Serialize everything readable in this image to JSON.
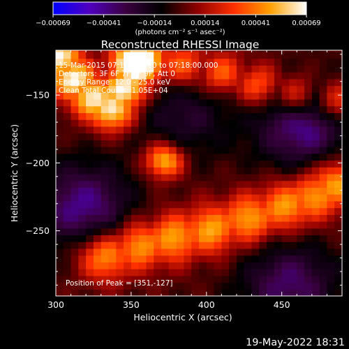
{
  "chart_data": {
    "type": "heatmap",
    "title": "Reconstructed RHESSI Image",
    "xlabel": "Heliocentric X (arcsec)",
    "ylabel": "Heliocentric Y (arcsec)",
    "xlim": [
      300,
      490
    ],
    "ylim": [
      -298,
      -117
    ],
    "x_ticks": [
      300,
      350,
      400,
      450
    ],
    "x_tick_labels": [
      "300",
      "350",
      "400",
      "450"
    ],
    "y_ticks": [
      -150,
      -200,
      -250
    ],
    "y_tick_labels": [
      "−150",
      "−200",
      "−250"
    ],
    "colorbar": {
      "range": [
        -0.00069,
        0.00069
      ],
      "tick_labels": [
        "−0.00069",
        "−0.00041",
        "−0.00014",
        "0.00014",
        "0.00041",
        "0.00069"
      ],
      "label": "(photons cm⁻² s⁻¹ asec⁻²)",
      "colormap": [
        "#0000ff",
        "#5000c0",
        "#3a0040",
        "#000000",
        "#900000",
        "#ff3000",
        "#ffa000",
        "#ffffff"
      ]
    },
    "annotations": [
      "15-Mar-2015 07:12:00.000 to 07:18:00.000",
      "Detectors: 3F 6F 7F 8F 9F, Att 0",
      "Energy Range: 12.0 - 25.0 keV",
      "Clean     Total Counts: 1.05E+04"
    ],
    "peak_label": "Position of Peak = [351,-127]",
    "peak": [
      351,
      -127
    ],
    "features": {
      "bright_arc": {
        "x": [
          333,
          355,
          378,
          403,
          428,
          452,
          472,
          486
        ],
        "y": [
          -268,
          -261,
          -255,
          -249,
          -241,
          -232,
          -224,
          -215
        ],
        "intensity": 0.00052
      },
      "left_lobe": {
        "x": [
          302,
          312,
          325,
          337,
          345,
          351
        ],
        "y": [
          -122,
          -138,
          -152,
          -160,
          -146,
          -127
        ],
        "intensity": 0.00069
      },
      "upper_band": {
        "x": [
          360,
          385,
          410,
          435,
          460,
          486
        ],
        "y": [
          -125,
          -128,
          -134,
          -143,
          -150,
          -155
        ],
        "intensity": 0.0004
      },
      "central_knot": {
        "x": [
          372
        ],
        "y": [
          -198
        ],
        "intensity": 0.00058
      },
      "negative_regions": [
        {
          "x": 318,
          "y": -232,
          "intensity": -0.00041
        },
        {
          "x": 465,
          "y": -172,
          "intensity": -0.00042
        },
        {
          "x": 455,
          "y": -290,
          "intensity": -0.00035
        },
        {
          "x": 385,
          "y": -165,
          "intensity": -0.00022
        }
      ]
    }
  },
  "footer": {
    "timestamp": "19-May-2022 18:31"
  }
}
